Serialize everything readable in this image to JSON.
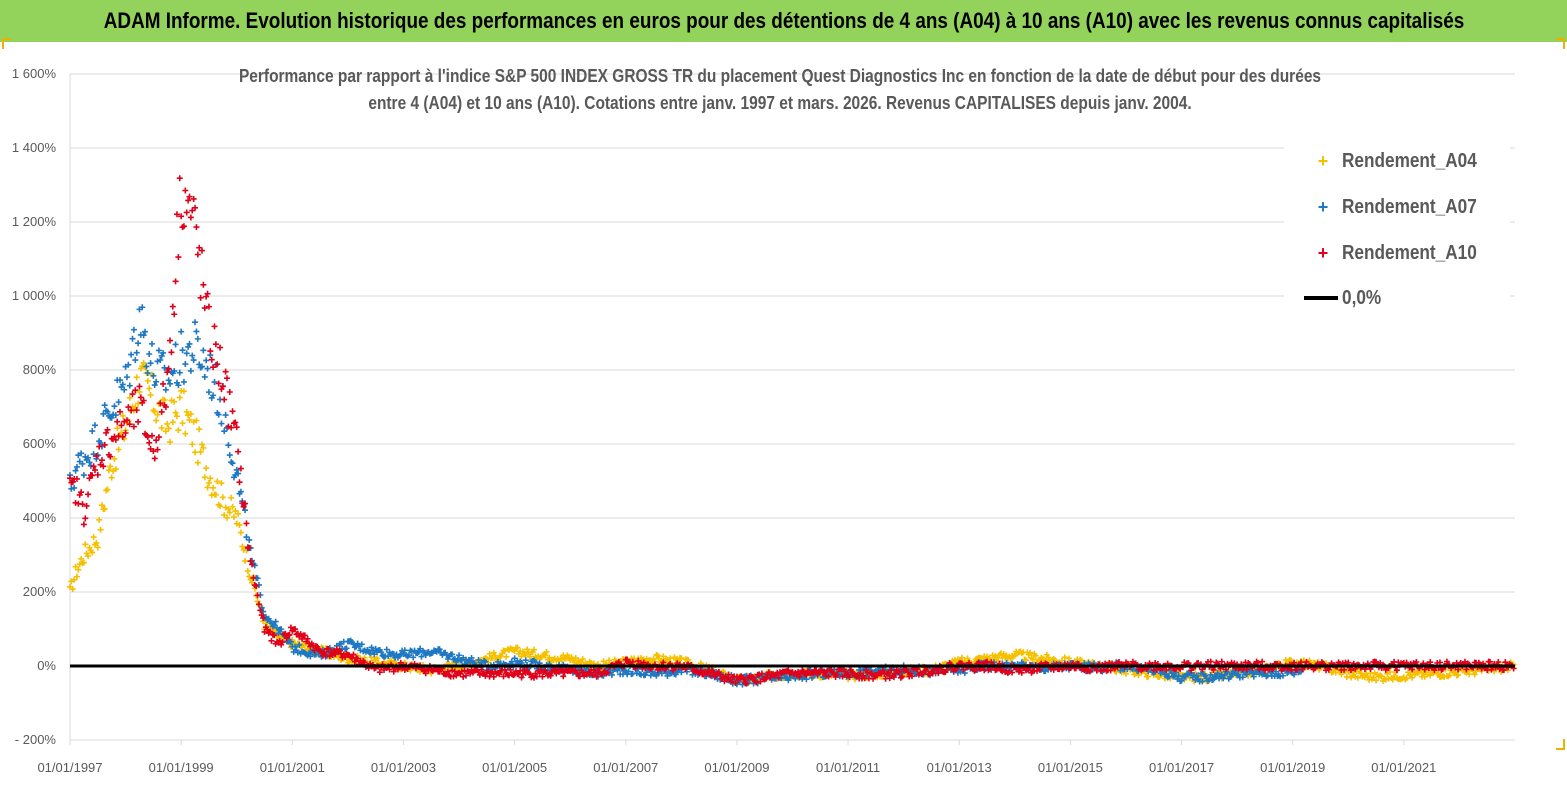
{
  "banner": {
    "title": "ADAM Informe. Evolution historique des performances en euros pour des détentions de 4 ans (A04) à 10 ans (A10) avec les revenus connus capitalisés"
  },
  "colors": {
    "banner_bg": "#93d35c",
    "A04": "#f5c000",
    "A07": "#1f78c1",
    "A10": "#e0001a",
    "zero": "#000000",
    "grid": "#d9d9d9",
    "text": "#595959"
  },
  "chart_data": {
    "type": "scatter",
    "title_line1": "Performance par rapport à l'indice S&P 500 INDEX GROSS TR  du placement Quest Diagnostics Inc en fonction de la date de début pour des durées",
    "title_line2": "entre 4 (A04) et 10 ans (A10). Cotations entre janv. 1997 et mars. 2026. Revenus CAPITALISES depuis janv. 2004.",
    "xlabel": "",
    "ylabel": "",
    "y_unit": "%",
    "ylim": [
      -200,
      1600
    ],
    "yticks": [
      -200,
      0,
      200,
      400,
      600,
      800,
      1000,
      1200,
      1400,
      1600
    ],
    "ytick_labels": [
      "- 200%",
      "0%",
      "200%",
      "400%",
      "600%",
      "800%",
      "1 000%",
      "1 200%",
      "1 400%",
      "1 600%"
    ],
    "xlim": [
      "01/01/1997",
      "01/01/2023"
    ],
    "xtick_labels": [
      "01/01/1997",
      "01/01/1999",
      "01/01/2001",
      "01/01/2003",
      "01/01/2005",
      "01/01/2007",
      "01/01/2009",
      "01/01/2011",
      "01/01/2013",
      "01/01/2015",
      "01/01/2017",
      "01/01/2019",
      "01/01/2021"
    ],
    "grid": "horizontal",
    "legend_position": "top-right",
    "series": [
      {
        "name": "Rendement_A04",
        "marker": "+",
        "color_key": "A04",
        "x": [
          1997.0,
          1997.1,
          1997.25,
          1997.5,
          1997.75,
          1998.0,
          1998.25,
          1998.5,
          1998.75,
          1999.0,
          1999.25,
          1999.5,
          1999.75,
          2000.0,
          2000.25,
          2000.5,
          2000.75,
          2001.0,
          2001.5,
          2002.0,
          2002.5,
          2003.0,
          2003.5,
          2004.0,
          2004.5,
          2005.0,
          2005.5,
          2006.0,
          2006.5,
          2007.0,
          2007.5,
          2008.0,
          2008.5,
          2009.0,
          2009.5,
          2010.0,
          2010.5,
          2011.0,
          2011.5,
          2012.0,
          2012.5,
          2013.0,
          2013.5,
          2014.0,
          2014.5,
          2015.0,
          2015.5,
          2016.0,
          2016.5,
          2017.0,
          2017.5,
          2018.0,
          2018.5,
          2019.0,
          2019.5,
          2020.0,
          2020.5,
          2021.0,
          2021.5,
          2022.0,
          2022.5,
          2023.0
        ],
        "y": [
          200,
          250,
          300,
          350,
          550,
          650,
          780,
          720,
          650,
          700,
          620,
          520,
          450,
          400,
          250,
          110,
          80,
          60,
          40,
          20,
          10,
          0,
          -10,
          0,
          20,
          40,
          30,
          20,
          0,
          10,
          20,
          10,
          -10,
          -40,
          -30,
          -20,
          -20,
          -25,
          -20,
          -15,
          -10,
          10,
          20,
          30,
          20,
          10,
          0,
          -10,
          -20,
          -30,
          -30,
          -20,
          -10,
          10,
          0,
          -20,
          -30,
          -25,
          -20,
          -15,
          -10,
          0
        ]
      },
      {
        "name": "Rendement_A07",
        "marker": "+",
        "color_key": "A07",
        "x": [
          1997.0,
          1997.1,
          1997.25,
          1997.5,
          1997.75,
          1998.0,
          1998.25,
          1998.5,
          1998.75,
          1999.0,
          1999.25,
          1999.5,
          1999.75,
          2000.0,
          2000.25,
          2000.5,
          2000.75,
          2001.0,
          2001.5,
          2002.0,
          2002.5,
          2003.0,
          2003.5,
          2004.0,
          2004.5,
          2005.0,
          2005.5,
          2006.0,
          2006.5,
          2007.0,
          2007.5,
          2008.0,
          2008.5,
          2009.0,
          2009.5,
          2010.0,
          2010.5,
          2011.0,
          2011.5,
          2012.0,
          2012.5,
          2013.0,
          2013.5,
          2014.0,
          2014.5,
          2015.0,
          2015.5,
          2016.0,
          2016.5,
          2017.0,
          2017.5,
          2018.0,
          2018.5,
          2019.0,
          2019.2
        ],
        "y": [
          480,
          530,
          560,
          620,
          700,
          760,
          950,
          800,
          780,
          830,
          860,
          800,
          700,
          520,
          300,
          140,
          100,
          50,
          30,
          60,
          40,
          30,
          40,
          20,
          0,
          10,
          0,
          -10,
          -20,
          -10,
          -20,
          -10,
          -20,
          -40,
          -35,
          -30,
          -20,
          -20,
          -15,
          -10,
          -15,
          -10,
          0,
          0,
          -5,
          0,
          -5,
          0,
          -10,
          -30,
          -30,
          -20,
          -20,
          -15,
          -10
        ]
      },
      {
        "name": "Rendement_A10",
        "marker": "+",
        "color_key": "A10",
        "x": [
          1997.0,
          1997.1,
          1997.25,
          1997.5,
          1997.75,
          1998.0,
          1998.25,
          1998.5,
          1998.75,
          1999.0,
          1999.25,
          1999.5,
          1999.75,
          2000.0,
          2000.25,
          2000.5,
          2000.75,
          2001.0,
          2001.5,
          2002.0,
          2002.5,
          2003.0,
          2003.5,
          2004.0,
          2004.5,
          2005.0,
          2005.5,
          2006.0,
          2006.5,
          2007.0,
          2007.5,
          2008.0,
          2008.5,
          2009.0,
          2009.5,
          2010.0,
          2010.5,
          2011.0,
          2011.5,
          2012.0,
          2012.5,
          2013.0,
          2013.5,
          2014.0,
          2014.5,
          2015.0,
          2015.5,
          2016.0,
          2016.5,
          2017.0,
          2017.5,
          2018.0,
          2018.5,
          2019.0,
          2019.5,
          2020.0,
          2020.5,
          2021.0,
          2021.5,
          2022.0,
          2022.5,
          2023.0
        ],
        "y": [
          470,
          480,
          420,
          560,
          620,
          650,
          700,
          580,
          760,
          1300,
          1180,
          900,
          780,
          600,
          280,
          100,
          60,
          100,
          40,
          30,
          -10,
          0,
          -10,
          -20,
          -20,
          -20,
          -20,
          -20,
          -20,
          10,
          0,
          0,
          -20,
          -40,
          -30,
          -20,
          -20,
          -20,
          -25,
          -20,
          -10,
          0,
          0,
          -10,
          -5,
          0,
          -5,
          0,
          0,
          0,
          0,
          0,
          0,
          0,
          0,
          0,
          0,
          0,
          0,
          0,
          0,
          0
        ]
      },
      {
        "name": "0,0%",
        "marker": "line",
        "color_key": "zero",
        "x": [
          1997.0,
          2023.0
        ],
        "y": [
          0,
          0
        ]
      }
    ]
  }
}
